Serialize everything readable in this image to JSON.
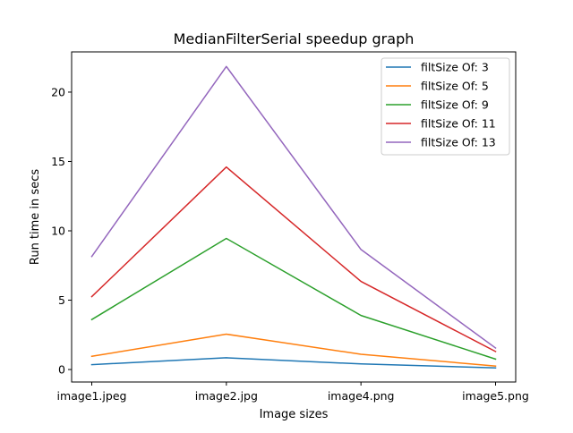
{
  "chart_data": {
    "type": "line",
    "title": "MedianFilterSerial speedup graph",
    "xlabel": "Image sizes",
    "ylabel": "Run time in secs",
    "categories": [
      "image1.jpeg",
      "image2.jpg",
      "image4.png",
      "image5.png"
    ],
    "ylim": [
      -0.9,
      22.9
    ],
    "yticks": [
      0,
      5,
      10,
      15,
      20
    ],
    "grid": false,
    "legend_position": "top-right",
    "series": [
      {
        "name": "filtSize Of: 3",
        "color": "#1f77b4",
        "values": [
          0.35,
          0.85,
          0.4,
          0.12
        ]
      },
      {
        "name": "filtSize Of: 5",
        "color": "#ff7f0e",
        "values": [
          0.95,
          2.55,
          1.1,
          0.25
        ]
      },
      {
        "name": "filtSize Of: 9",
        "color": "#2ca02c",
        "values": [
          3.6,
          9.45,
          3.9,
          0.75
        ]
      },
      {
        "name": "filtSize Of: 11",
        "color": "#d62728",
        "values": [
          5.25,
          14.6,
          6.35,
          1.3
        ]
      },
      {
        "name": "filtSize Of: 13",
        "color": "#9467bd",
        "values": [
          8.15,
          21.85,
          8.65,
          1.55
        ]
      }
    ]
  }
}
